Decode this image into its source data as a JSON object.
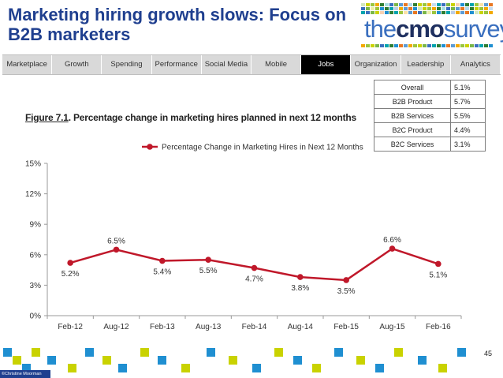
{
  "slide": {
    "title": "Marketing hiring growth slows: Focus on B2B marketers",
    "logo_text_pre": "the",
    "logo_text_bold": "cmo",
    "logo_text_post": "survey",
    "copyright": "©Christine Moorman",
    "page_number": "45"
  },
  "nav": {
    "tabs": [
      "Marketplace",
      "Growth",
      "Spending",
      "Performance",
      "Social Media",
      "Mobile",
      "Jobs",
      "Organization",
      "Leadership",
      "Analytics"
    ],
    "active": "Jobs"
  },
  "side_table": {
    "rows": [
      {
        "label": "Overall",
        "value": "5.1%"
      },
      {
        "label": "B2B Product",
        "value": "5.7%"
      },
      {
        "label": "B2B Services",
        "value": "5.5%"
      },
      {
        "label": "B2C Product",
        "value": "4.4%"
      },
      {
        "label": "B2C Services",
        "value": "3.1%"
      }
    ]
  },
  "figure": {
    "number": "Figure 7.1",
    "caption": ".  Percentage change in marketing hires planned in next 12 months"
  },
  "colors": {
    "title": "#1f3f8f",
    "series": "#c0182a",
    "nav_active": "#000000",
    "nav_bg": "#d9d9d9"
  },
  "chart_data": {
    "type": "line",
    "categories": [
      "Feb-12",
      "Aug-12",
      "Feb-13",
      "Aug-13",
      "Feb-14",
      "Aug-14",
      "Feb-15",
      "Aug-15",
      "Feb-16"
    ],
    "series": [
      {
        "name": "Percentage Change in Marketing Hires in Next 12 Months",
        "values": [
          5.2,
          6.5,
          5.4,
          5.5,
          4.7,
          3.8,
          3.5,
          6.6,
          5.1
        ],
        "labels": [
          "5.2%",
          "6.5%",
          "5.4%",
          "5.5%",
          "4.7%",
          "3.8%",
          "3.5%",
          "6.6%",
          "5.1%"
        ]
      }
    ],
    "yticks": [
      0,
      3,
      6,
      9,
      12,
      15
    ],
    "ytick_labels": [
      "0%",
      "3%",
      "6%",
      "9%",
      "12%",
      "15%"
    ],
    "ylim": [
      0,
      15
    ],
    "grid": false,
    "legend": "top-center"
  }
}
